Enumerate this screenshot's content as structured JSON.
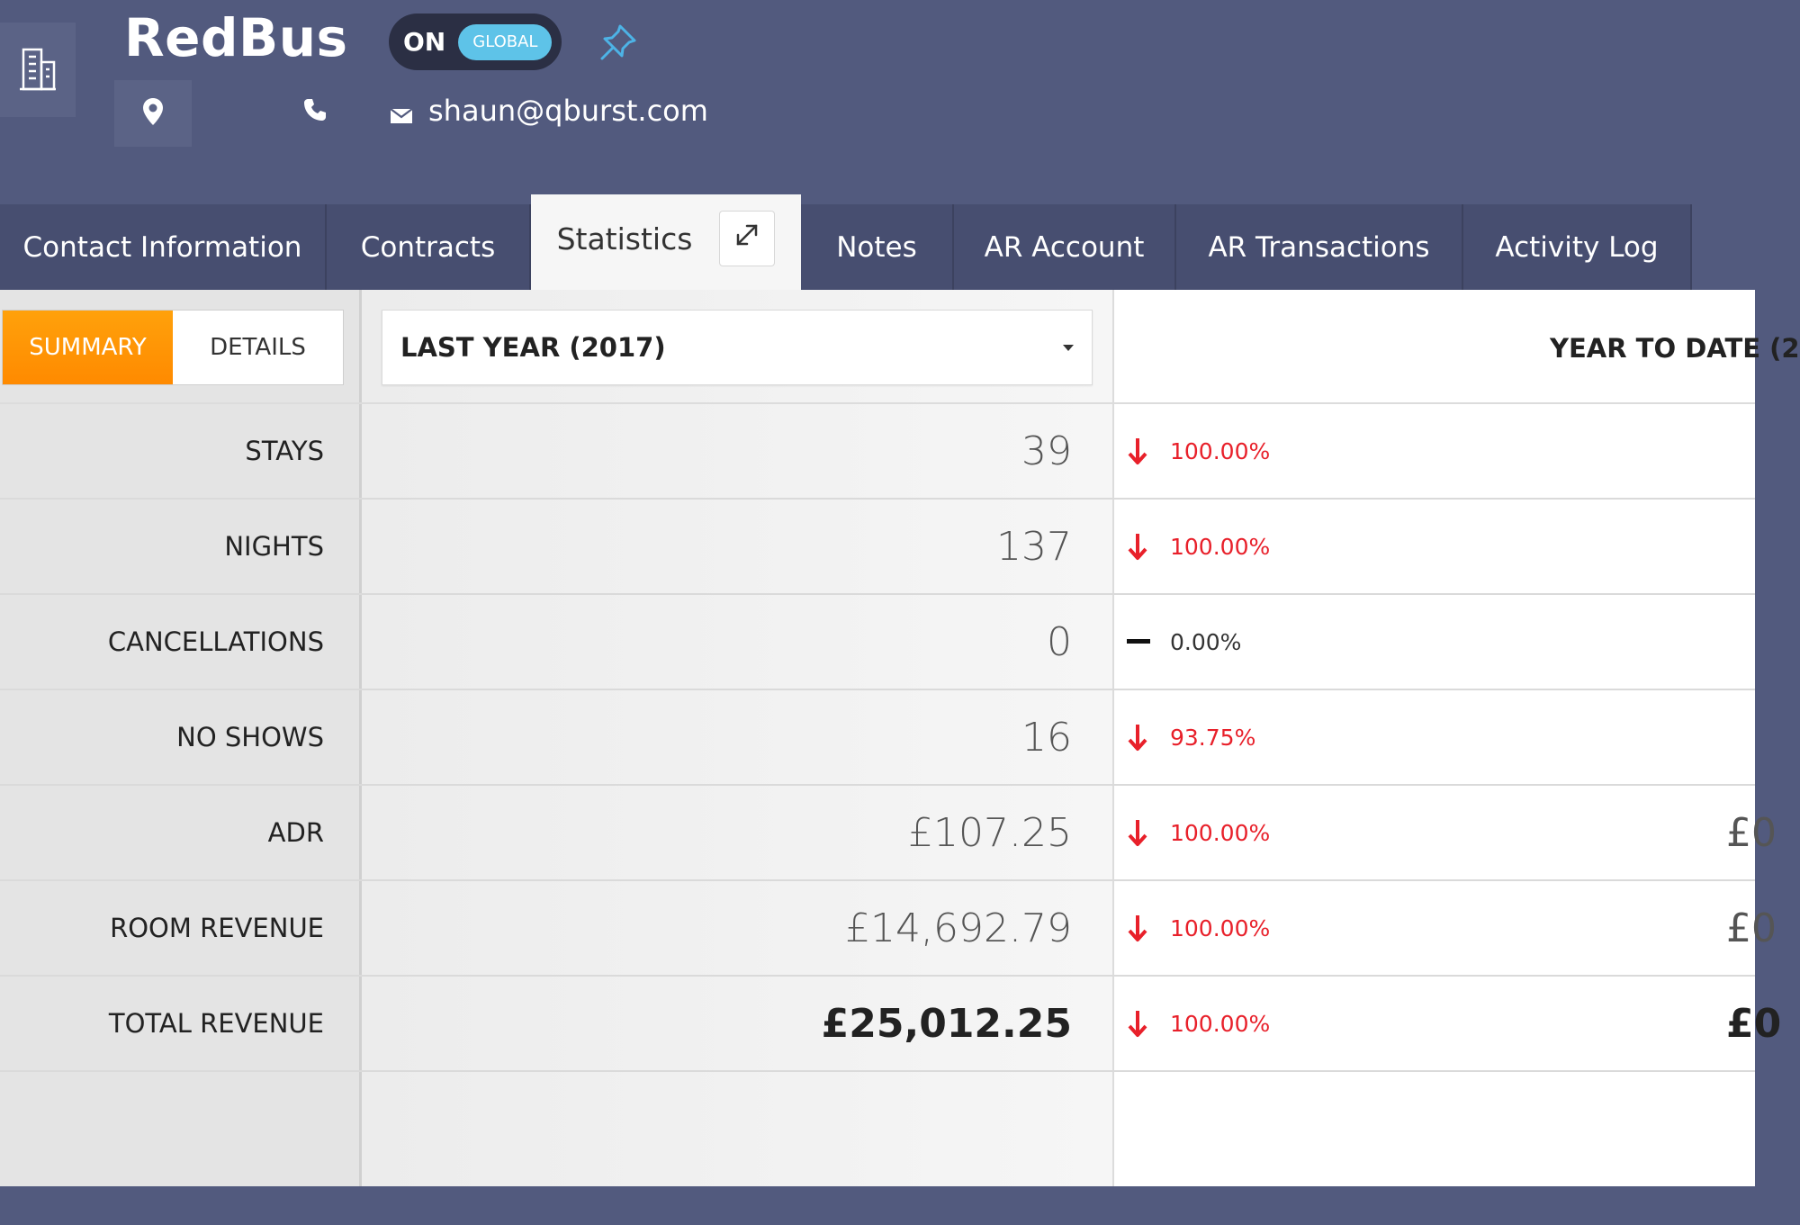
{
  "header": {
    "company_name": "RedBus",
    "email": "shaun@qburst.com",
    "toggle": {
      "state": "ON",
      "scope": "GLOBAL"
    }
  },
  "tabs": [
    {
      "label": "Contact Information",
      "active": false
    },
    {
      "label": "Contracts",
      "active": false
    },
    {
      "label": "Statistics",
      "active": true
    },
    {
      "label": "Notes",
      "active": false
    },
    {
      "label": "AR Account",
      "active": false
    },
    {
      "label": "AR Transactions",
      "active": false
    },
    {
      "label": "Activity Log",
      "active": false
    }
  ],
  "view_toggle": {
    "summary": "SUMMARY",
    "details": "DETAILS",
    "selected": "SUMMARY"
  },
  "period_select": {
    "value": "LAST YEAR (2017)"
  },
  "ytd_header": "YEAR TO DATE (2",
  "rows": [
    {
      "label": "STAYS",
      "value": "39",
      "change": "100.00%",
      "direction": "down",
      "ytd": ""
    },
    {
      "label": "NIGHTS",
      "value": "137",
      "change": "100.00%",
      "direction": "down",
      "ytd": ""
    },
    {
      "label": "CANCELLATIONS",
      "value": "0",
      "change": "0.00%",
      "direction": "none",
      "ytd": ""
    },
    {
      "label": "NO SHOWS",
      "value": "16",
      "change": "93.75%",
      "direction": "down",
      "ytd": ""
    },
    {
      "label": "ADR",
      "value": "£107.25",
      "change": "100.00%",
      "direction": "down",
      "ytd": "£0"
    },
    {
      "label": "ROOM REVENUE",
      "value": "£14,692.79",
      "change": "100.00%",
      "direction": "down",
      "ytd": "£0"
    },
    {
      "label": "TOTAL REVENUE",
      "value": "£25,012.25",
      "change": "100.00%",
      "direction": "down",
      "ytd": "£0"
    }
  ],
  "colors": {
    "header_bg": "#525a7e",
    "tab_bg": "#474e70",
    "accent_orange": "#ff9800",
    "toggle_pill": "#5ec3e8",
    "decrease_red": "#e8202a",
    "pin_blue": "#4db3e6"
  }
}
